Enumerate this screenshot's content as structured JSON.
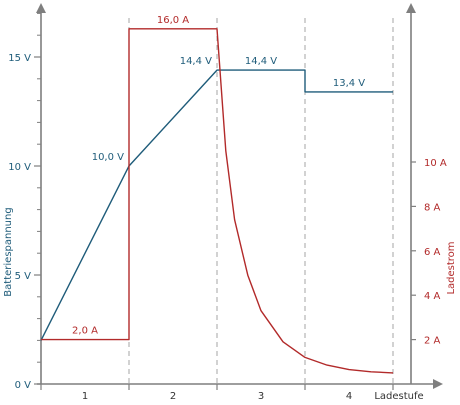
{
  "chart_data": {
    "type": "line",
    "xlabel": "Ladestufe",
    "ylabel_left": "Batteriespannung",
    "ylabel_right": "Ladestrom",
    "stage_labels": [
      "1",
      "2",
      "3",
      "4"
    ],
    "x_ticks": [
      0,
      1,
      2,
      3,
      4
    ],
    "ylim_left": [
      0,
      17.5
    ],
    "ylim_right": [
      0,
      18.4
    ],
    "ticks_left": [
      {
        "v": 0,
        "label": "0 V"
      },
      {
        "v": 5,
        "label": "5 V"
      },
      {
        "v": 10,
        "label": "10 V"
      },
      {
        "v": 15,
        "label": "15 V"
      }
    ],
    "minor_ticks_left": [
      1,
      2,
      3,
      4,
      6,
      7,
      8,
      9,
      11,
      12,
      13,
      14,
      16,
      17
    ],
    "ticks_right": [
      {
        "v": 2,
        "label": "2 A"
      },
      {
        "v": 4,
        "label": "4 A"
      },
      {
        "v": 6,
        "label": "6 A"
      },
      {
        "v": 8,
        "label": "8 A"
      },
      {
        "v": 10,
        "label": "10 A"
      }
    ],
    "grid": false,
    "series": [
      {
        "axis": "left",
        "color": "#1f5c7a",
        "points": [
          [
            0,
            2.0
          ],
          [
            1,
            10.0
          ],
          [
            2,
            14.4
          ],
          [
            3,
            14.4
          ],
          [
            3,
            13.4
          ],
          [
            4,
            13.4
          ]
        ]
      },
      {
        "axis": "right",
        "color": "#b22a2a",
        "points": [
          [
            0,
            2.0
          ],
          [
            1,
            2.0
          ],
          [
            1,
            16.0
          ],
          [
            2,
            16.0
          ],
          [
            2.1,
            10.5
          ],
          [
            2.2,
            7.4
          ],
          [
            2.35,
            4.9
          ],
          [
            2.5,
            3.3
          ],
          [
            2.75,
            1.9
          ],
          [
            3,
            1.2
          ],
          [
            3.25,
            0.85
          ],
          [
            3.5,
            0.65
          ],
          [
            3.75,
            0.55
          ],
          [
            4,
            0.5
          ]
        ]
      }
    ],
    "annotations": [
      {
        "text": "10,0 V",
        "series": 0,
        "x": 1,
        "y": 10.0
      },
      {
        "text": "14,4 V",
        "series": 0,
        "x": 2,
        "y": 14.4
      },
      {
        "text": "14,4 V",
        "series": 0,
        "x": 2.5,
        "y": 14.4
      },
      {
        "text": "13,4 V",
        "series": 0,
        "x": 3.5,
        "y": 13.4
      },
      {
        "text": "2,0 A",
        "series": 1,
        "x": 0.5,
        "y": 2.0
      },
      {
        "text": "16,0 A",
        "series": 1,
        "x": 1.5,
        "y": 16.0
      }
    ]
  }
}
